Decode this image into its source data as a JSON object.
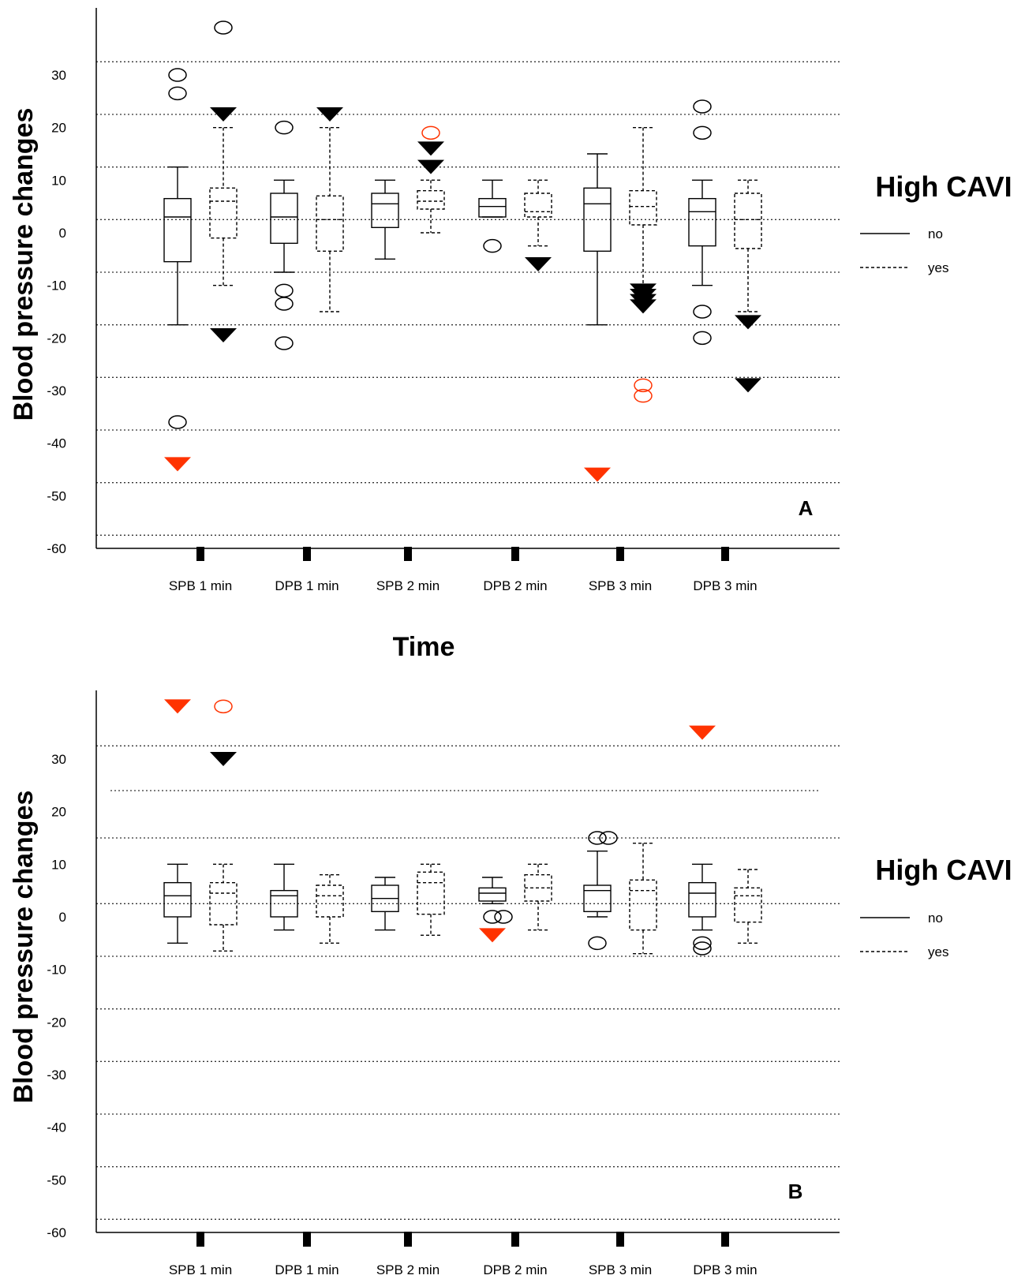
{
  "time_label": "Time",
  "chart_data": [
    {
      "type": "box",
      "panel_label": "A",
      "ylabel": "Blood pressure changes",
      "ylim": [
        -60,
        35
      ],
      "y_ticks": [
        "30",
        "20",
        "10",
        "0",
        "-10",
        "-20",
        "-30",
        "-40",
        "-50",
        "-60"
      ],
      "y_tick_values": [
        30,
        20,
        10,
        0,
        -10,
        -20,
        -30,
        -40,
        -50,
        -60
      ],
      "gridlines": [
        32.5,
        22.5,
        12.5,
        2.5,
        -7.5,
        -17.5,
        -27.5,
        -37.5,
        -47.5,
        -57.5
      ],
      "categories": [
        "SPB 1 min",
        "DPB 1 min",
        "SPB 2 min",
        "DPB 2 min",
        "SPB 3 min",
        "DPB 3 min"
      ],
      "legend": {
        "title": "High CAVI",
        "entries": [
          "no",
          "yes"
        ],
        "position": "right"
      },
      "series": [
        {
          "name": "no",
          "line_style": "solid",
          "boxes": [
            {
              "min": -17.5,
              "q1": -5.5,
              "median": 3,
              "q3": 6.5,
              "max": 12.5
            },
            {
              "min": -7.5,
              "q1": -2,
              "median": 3,
              "q3": 7.5,
              "max": 10
            },
            {
              "min": -5,
              "q1": 1,
              "median": 5.5,
              "q3": 7.5,
              "max": 10
            },
            {
              "min": 3,
              "q1": 3,
              "median": 5,
              "q3": 6.5,
              "max": 10
            },
            {
              "min": -17.5,
              "q1": -3.5,
              "median": 5.5,
              "q3": 8.5,
              "max": 15
            },
            {
              "min": -10,
              "q1": -2.5,
              "median": 4,
              "q3": 6.5,
              "max": 10
            }
          ],
          "outliers": [
            {
              "category": "SPB 1 min",
              "y": 30,
              "marker": "circle",
              "color": "#000000"
            },
            {
              "category": "SPB 1 min",
              "y": 26.5,
              "marker": "circle",
              "color": "#000000"
            },
            {
              "category": "SPB 1 min",
              "y": -36,
              "marker": "circle",
              "color": "#000000"
            },
            {
              "category": "SPB 1 min",
              "y": -44,
              "marker": "triangle",
              "color": "#ff3300"
            },
            {
              "category": "DPB 1 min",
              "y": 20,
              "marker": "circle",
              "color": "#000000"
            },
            {
              "category": "DPB 1 min",
              "y": -11,
              "marker": "circle",
              "color": "#000000"
            },
            {
              "category": "DPB 1 min",
              "y": -13.5,
              "marker": "circle",
              "color": "#000000"
            },
            {
              "category": "DPB 1 min",
              "y": -21,
              "marker": "circle",
              "color": "#000000"
            },
            {
              "category": "DPB 2 min",
              "y": -2.5,
              "marker": "circle",
              "color": "#000000"
            },
            {
              "category": "SPB 3 min",
              "y": -46,
              "marker": "triangle",
              "color": "#ff3300"
            },
            {
              "category": "DPB 3 min",
              "y": 24,
              "marker": "circle",
              "color": "#000000"
            },
            {
              "category": "DPB 3 min",
              "y": 19,
              "marker": "circle",
              "color": "#000000"
            },
            {
              "category": "DPB 3 min",
              "y": -15,
              "marker": "circle",
              "color": "#000000"
            },
            {
              "category": "DPB 3 min",
              "y": -20,
              "marker": "circle",
              "color": "#000000"
            }
          ]
        },
        {
          "name": "yes",
          "line_style": "dashed",
          "boxes": [
            {
              "min": -10,
              "q1": -1,
              "median": 6,
              "q3": 8.5,
              "max": 20
            },
            {
              "min": -15,
              "q1": -3.5,
              "median": 2.5,
              "q3": 7,
              "max": 20
            },
            {
              "min": 0,
              "q1": 4.5,
              "median": 6,
              "q3": 8,
              "max": 10
            },
            {
              "min": -2.5,
              "q1": 3,
              "median": 4,
              "q3": 7.5,
              "max": 10
            },
            {
              "min": -10,
              "q1": 1.5,
              "median": 5,
              "q3": 8,
              "max": 20
            },
            {
              "min": -15,
              "q1": -3,
              "median": 2.5,
              "q3": 7.5,
              "max": 10
            }
          ],
          "outliers": [
            {
              "category": "SPB 1 min",
              "y": 39,
              "marker": "circle",
              "color": "#000000"
            },
            {
              "category": "SPB 1 min",
              "y": 22.5,
              "marker": "triangle",
              "color": "#000000"
            },
            {
              "category": "SPB 1 min",
              "y": -19.5,
              "marker": "triangle",
              "color": "#000000"
            },
            {
              "category": "DPB 1 min",
              "y": 22.5,
              "marker": "triangle",
              "color": "#000000"
            },
            {
              "category": "SPB 2 min",
              "y": 19,
              "marker": "circle",
              "color": "#ff3300"
            },
            {
              "category": "SPB 2 min",
              "y": 16,
              "marker": "triangle",
              "color": "#000000"
            },
            {
              "category": "SPB 2 min",
              "y": 12.5,
              "marker": "triangle",
              "color": "#000000"
            },
            {
              "category": "DPB 2 min",
              "y": -6,
              "marker": "triangle",
              "color": "#000000"
            },
            {
              "category": "SPB 3 min",
              "y": -12,
              "marker": "triangle",
              "color": "#000000"
            },
            {
              "category": "SPB 3 min",
              "y": -14,
              "marker": "triangle",
              "color": "#000000"
            },
            {
              "category": "SPB 3 min",
              "y": -11,
              "marker": "triangle",
              "color": "#000000"
            },
            {
              "category": "SPB 3 min",
              "y": -13,
              "marker": "triangle",
              "color": "#000000"
            },
            {
              "category": "SPB 3 min",
              "y": -31,
              "marker": "circle",
              "color": "#ff3300"
            },
            {
              "category": "SPB 3 min",
              "y": -29,
              "marker": "circle",
              "color": "#ff3300"
            },
            {
              "category": "DPB 3 min",
              "y": -17,
              "marker": "triangle",
              "color": "#000000"
            },
            {
              "category": "DPB 3 min",
              "y": -29,
              "marker": "triangle",
              "color": "#000000"
            }
          ]
        }
      ]
    },
    {
      "type": "box",
      "panel_label": "B",
      "ylabel": "Blood pressure changes",
      "ylim": [
        -60,
        36
      ],
      "y_ticks": [
        "30",
        "20",
        "10",
        "0",
        "-10",
        "-20",
        "-30",
        "-40",
        "-50",
        "-60"
      ],
      "y_tick_values": [
        30,
        20,
        10,
        0,
        -10,
        -20,
        -30,
        -40,
        -50,
        -60
      ],
      "gridlines": [
        32.5,
        24,
        15,
        2.5,
        -7.5,
        -17.5,
        -27.5,
        -37.5,
        -47.5,
        -57.5
      ],
      "categories": [
        "SPB 1 min",
        "DPB 1 min",
        "SPB 2 min",
        "DPB 2 min",
        "SPB 3 min",
        "DPB 3 min"
      ],
      "legend": {
        "title": "High CAVI",
        "entries": [
          "no",
          "yes"
        ],
        "position": "right"
      },
      "series": [
        {
          "name": "no",
          "line_style": "solid",
          "boxes": [
            {
              "min": -5,
              "q1": 0,
              "median": 4,
              "q3": 6.5,
              "max": 10
            },
            {
              "min": -2.5,
              "q1": 0,
              "median": 4,
              "q3": 5,
              "max": 10
            },
            {
              "min": -2.5,
              "q1": 1,
              "median": 3.5,
              "q3": 6,
              "max": 7.5
            },
            {
              "min": 2.5,
              "q1": 3,
              "median": 4.5,
              "q3": 5.5,
              "max": 7.5
            },
            {
              "min": 0,
              "q1": 1,
              "median": 5,
              "q3": 6,
              "max": 12.5
            },
            {
              "min": -2.5,
              "q1": 0,
              "median": 4.5,
              "q3": 6.5,
              "max": 10
            }
          ],
          "outliers": [
            {
              "category": "SPB 1 min",
              "y": 40,
              "marker": "triangle",
              "color": "#ff3300"
            },
            {
              "category": "DPB 2 min",
              "y": 0,
              "marker": "circle",
              "color": "#000000"
            },
            {
              "category": "DPB 2 min",
              "y": 0,
              "marker": "circle",
              "color": "#000000"
            },
            {
              "category": "DPB 2 min",
              "y": -3.5,
              "marker": "triangle",
              "color": "#ff3300"
            },
            {
              "category": "SPB 3 min",
              "y": 15,
              "marker": "circle",
              "color": "#000000"
            },
            {
              "category": "SPB 3 min",
              "y": 15,
              "marker": "circle",
              "color": "#000000"
            },
            {
              "category": "SPB 3 min",
              "y": -5,
              "marker": "circle",
              "color": "#000000"
            },
            {
              "category": "DPB 3 min",
              "y": 35,
              "marker": "triangle",
              "color": "#ff3300"
            },
            {
              "category": "DPB 3 min",
              "y": -6,
              "marker": "circle",
              "color": "#000000"
            },
            {
              "category": "DPB 3 min",
              "y": -5,
              "marker": "circle",
              "color": "#000000"
            }
          ]
        },
        {
          "name": "yes",
          "line_style": "dashed",
          "boxes": [
            {
              "min": -6.5,
              "q1": -1.5,
              "median": 4.5,
              "q3": 6.5,
              "max": 10
            },
            {
              "min": -5,
              "q1": 0,
              "median": 4,
              "q3": 6,
              "max": 8
            },
            {
              "min": -3.5,
              "q1": 0.5,
              "median": 6.5,
              "q3": 8.5,
              "max": 10
            },
            {
              "min": -2.5,
              "q1": 3,
              "median": 5.5,
              "q3": 8,
              "max": 10
            },
            {
              "min": -7,
              "q1": -2.5,
              "median": 5,
              "q3": 7,
              "max": 14
            },
            {
              "min": -5,
              "q1": -1,
              "median": 4,
              "q3": 5.5,
              "max": 9
            }
          ],
          "outliers": [
            {
              "category": "SPB 1 min",
              "y": 40,
              "marker": "circle",
              "color": "#ff3300"
            },
            {
              "category": "SPB 1 min",
              "y": 30,
              "marker": "triangle",
              "color": "#000000"
            }
          ]
        }
      ]
    }
  ]
}
